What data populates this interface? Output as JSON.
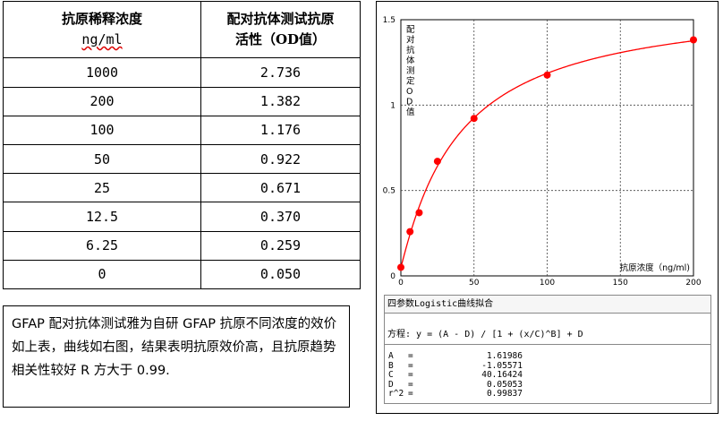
{
  "table": {
    "header_conc_line1": "抗原稀释浓度",
    "header_conc_unit": "ng/ml",
    "header_od_line1": "配对抗体测试抗原",
    "header_od_line2": "活性（OD值）",
    "rows": [
      {
        "conc": "1000",
        "od": "2.736"
      },
      {
        "conc": "200",
        "od": "1.382"
      },
      {
        "conc": "100",
        "od": "1.176"
      },
      {
        "conc": "50",
        "od": "0.922"
      },
      {
        "conc": "25",
        "od": "0.671"
      },
      {
        "conc": "12.5",
        "od": "0.370"
      },
      {
        "conc": "6.25",
        "od": "0.259"
      },
      {
        "conc": "0",
        "od": "0.050"
      }
    ]
  },
  "note": {
    "text": "GFAP 配对抗体测试雅为自研 GFAP 抗原不同浓度的效价如上表，曲线如右图，结果表明抗原效价高，且抗原趋势相关性较好 R 方大于 0.99."
  },
  "chart_data": {
    "type": "scatter",
    "ylabel": "配对抗体测定OD值",
    "xlabel": "抗原浓度（ng/ml)",
    "xlim": [
      0,
      200
    ],
    "ylim": [
      0,
      1.5
    ],
    "x_ticks": [
      "0",
      "50",
      "100",
      "150",
      "200"
    ],
    "y_ticks": [
      "0",
      "0.5",
      "1",
      "1.5"
    ],
    "grid": true,
    "points": [
      {
        "x": 0,
        "y": 0.05
      },
      {
        "x": 6.25,
        "y": 0.259
      },
      {
        "x": 12.5,
        "y": 0.37
      },
      {
        "x": 25,
        "y": 0.671
      },
      {
        "x": 50,
        "y": 0.922
      },
      {
        "x": 100,
        "y": 1.176
      },
      {
        "x": 200,
        "y": 1.382
      }
    ],
    "fit": {
      "A": 1.61986,
      "B": -1.05571,
      "C": 40.16424,
      "D": 0.05053
    },
    "point_color": "#ff0000",
    "curve_color": "#ff0000"
  },
  "fit_panel": {
    "title": "四参数Logistic曲线拟合",
    "equation": "方程: y = (A - D) / [1 + (x/C)^B] + D",
    "params": [
      {
        "name": "A",
        "eq": "=",
        "value": "1.61986"
      },
      {
        "name": "B",
        "eq": "=",
        "value": "-1.05571"
      },
      {
        "name": "C",
        "eq": "=",
        "value": "40.16424"
      },
      {
        "name": "D",
        "eq": "=",
        "value": "0.05053"
      },
      {
        "name": "r^2",
        "eq": "=",
        "value": "0.99837"
      }
    ]
  }
}
